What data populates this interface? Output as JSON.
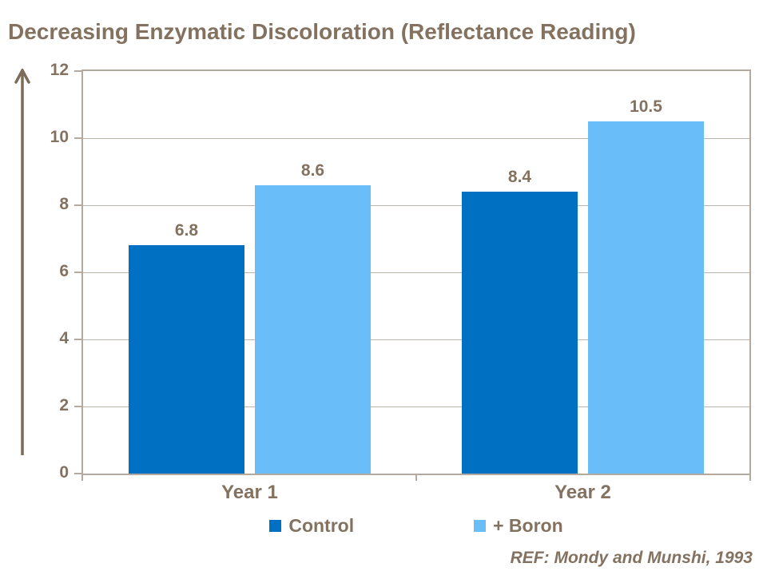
{
  "title": "Decreasing Enzymatic Discoloration (Reflectance Reading)",
  "reference": "REF: Mondy and Munshi, 1993",
  "colors": {
    "text_brown": "#847260",
    "axis_border": "#b3a99e",
    "gridline": "#beb5ab",
    "control_blue": "#0070C2",
    "boron_light_blue": "#69BDF9",
    "arrow_brown": "#7c6c5a",
    "background": "#ffffff"
  },
  "chart_data": {
    "type": "bar",
    "title": "Decreasing Enzymatic Discoloration (Reflectance Reading)",
    "categories": [
      "Year 1",
      "Year 2"
    ],
    "series": [
      {
        "name": "Control",
        "color": "#0070C2",
        "values": [
          6.8,
          8.4
        ]
      },
      {
        "name": "+ Boron",
        "color": "#69BDF9",
        "values": [
          8.6,
          10.5
        ]
      }
    ],
    "data_labels": [
      [
        "6.8",
        "8.4"
      ],
      [
        "8.6",
        "10.5"
      ]
    ],
    "xlabel": "",
    "ylabel": "",
    "ylim": [
      0,
      12
    ],
    "yticks": [
      0,
      2,
      4,
      6,
      8,
      10,
      12
    ],
    "grid": true,
    "legend_position": "bottom",
    "plot_border": true,
    "y_axis_arrow": true
  }
}
